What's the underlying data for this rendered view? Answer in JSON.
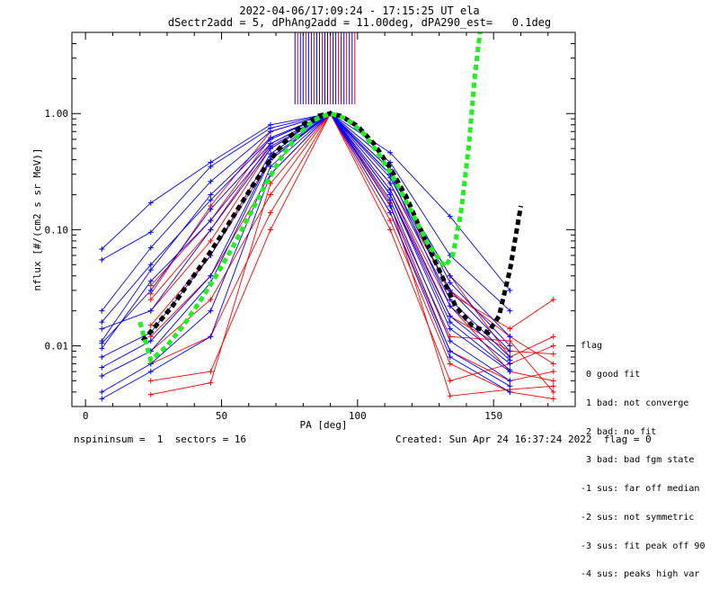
{
  "header": {
    "title_line1": "2022-04-06/17:09:24 - 17:15:25 UT ela",
    "title_line2": "dSectr2add = 5, dPhAng2add = 11.00deg, dPA290_est=   0.1deg"
  },
  "footer": {
    "left": "nspininsum =  1  sectors = 16",
    "right": "Created: Sun Apr 24 16:37:24 2022  flag = 0"
  },
  "legend": {
    "title": "flag",
    "items": [
      " 0 good fit",
      " 1 bad: not converge",
      " 2 bad: no fit",
      " 3 bad: bad fgm state",
      "-1 sus: far off median",
      "-2 sus: not symmetric",
      "-3 sus: fit peak off 90",
      "-4 sus: peaks high var"
    ]
  },
  "chart_data": {
    "type": "line",
    "xlabel": "PA [deg]",
    "ylabel": "nflux [#/(cm2 s sr MeV)]",
    "xlim": [
      -5,
      180
    ],
    "ylim": [
      0.003,
      5.0
    ],
    "yscale": "log",
    "x_ticks": [
      0,
      50,
      100,
      150
    ],
    "x_tick_labels": [
      "0",
      "50",
      "100",
      "150"
    ],
    "y_ticks": [
      0.01,
      0.1,
      1.0
    ],
    "y_tick_labels": [
      "0.01",
      "0.10",
      "1.00"
    ],
    "colors": {
      "blue": "#0000ff",
      "red": "#ff0000",
      "black": "#000000",
      "green": "#22ee22"
    },
    "blue_series": [
      {
        "x": [
          6,
          24,
          46,
          68,
          90,
          112,
          134,
          156
        ],
        "y": [
          0.055,
          0.095,
          0.35,
          0.75,
          1.0,
          0.38,
          0.06,
          0.02
        ]
      },
      {
        "x": [
          6,
          24,
          46,
          68,
          90,
          112,
          134,
          156
        ],
        "y": [
          0.068,
          0.17,
          0.38,
          0.8,
          1.0,
          0.46,
          0.13,
          0.03
        ]
      },
      {
        "x": [
          6,
          24,
          46,
          68,
          90,
          112,
          134,
          156
        ],
        "y": [
          0.02,
          0.07,
          0.26,
          0.7,
          1.0,
          0.3,
          0.04,
          0.012
        ]
      },
      {
        "x": [
          6,
          24,
          46,
          68,
          90,
          112,
          134,
          156
        ],
        "y": [
          0.011,
          0.045,
          0.2,
          0.62,
          1.0,
          0.28,
          0.03,
          0.009
        ]
      },
      {
        "x": [
          6,
          24,
          46,
          68,
          90,
          112,
          134,
          156
        ],
        "y": [
          0.0105,
          0.03,
          0.15,
          0.55,
          1.0,
          0.25,
          0.025,
          0.008
        ]
      },
      {
        "x": [
          6,
          24,
          46,
          68,
          90,
          112,
          134,
          156
        ],
        "y": [
          0.014,
          0.02,
          0.1,
          0.5,
          1.0,
          0.22,
          0.018,
          0.007
        ]
      },
      {
        "x": [
          6,
          24,
          46,
          68,
          90,
          112,
          134,
          156
        ],
        "y": [
          0.008,
          0.013,
          0.06,
          0.45,
          1.0,
          0.2,
          0.014,
          0.006
        ]
      },
      {
        "x": [
          6,
          24,
          46,
          68,
          90,
          112,
          134,
          156
        ],
        "y": [
          0.0055,
          0.009,
          0.035,
          0.4,
          1.0,
          0.18,
          0.011,
          0.005
        ]
      },
      {
        "x": [
          6,
          24,
          46,
          68,
          90,
          112,
          134,
          156
        ],
        "y": [
          0.004,
          0.007,
          0.02,
          0.35,
          1.0,
          0.16,
          0.009,
          0.0045
        ]
      },
      {
        "x": [
          6,
          24,
          46,
          68,
          90,
          112,
          134,
          156
        ],
        "y": [
          0.0035,
          0.006,
          0.012,
          0.3,
          1.0,
          0.14,
          0.008,
          0.004
        ]
      },
      {
        "x": [
          6,
          24,
          46,
          68,
          90,
          112,
          134,
          156
        ],
        "y": [
          0.016,
          0.05,
          0.18,
          0.6,
          1.0,
          0.33,
          0.035,
          0.01
        ]
      },
      {
        "x": [
          6,
          24,
          46,
          68,
          90,
          112,
          134,
          156
        ],
        "y": [
          0.0065,
          0.011,
          0.04,
          0.42,
          1.0,
          0.2,
          0.016,
          0.0062
        ]
      },
      {
        "x": [
          6,
          24,
          46,
          68,
          90,
          112,
          134,
          156
        ],
        "y": [
          0.0095,
          0.036,
          0.12,
          0.52,
          1.0,
          0.3,
          0.022,
          0.0075
        ]
      }
    ],
    "red_series": [
      {
        "x": [
          24,
          46,
          68,
          90,
          112,
          134,
          156,
          172
        ],
        "y": [
          0.033,
          0.12,
          0.62,
          1.0,
          0.3,
          0.04,
          0.008,
          0.012
        ]
      },
      {
        "x": [
          24,
          46,
          68,
          90,
          112,
          134,
          156,
          172
        ],
        "y": [
          0.025,
          0.1,
          0.55,
          1.0,
          0.25,
          0.03,
          0.012,
          0.007
        ]
      },
      {
        "x": [
          24,
          46,
          68,
          90,
          112,
          134,
          156,
          172
        ],
        "y": [
          0.02,
          0.08,
          0.5,
          1.0,
          0.22,
          0.022,
          0.006,
          0.005
        ]
      },
      {
        "x": [
          24,
          46,
          68,
          90,
          112,
          134,
          156,
          172
        ],
        "y": [
          0.015,
          0.06,
          0.4,
          1.0,
          0.2,
          0.018,
          0.009,
          0.0085
        ]
      },
      {
        "x": [
          24,
          46,
          68,
          90,
          112,
          134,
          156,
          172
        ],
        "y": [
          0.012,
          0.04,
          0.3,
          1.0,
          0.16,
          0.012,
          0.011,
          0.004
        ]
      },
      {
        "x": [
          24,
          46,
          68,
          90,
          112,
          134,
          156,
          172
        ],
        "y": [
          0.009,
          0.025,
          0.2,
          1.0,
          0.14,
          0.009,
          0.005,
          0.006
        ]
      },
      {
        "x": [
          24,
          46,
          68,
          90,
          112,
          134,
          156,
          172
        ],
        "y": [
          0.007,
          0.012,
          0.14,
          1.0,
          0.12,
          0.007,
          0.004,
          0.0035
        ]
      },
      {
        "x": [
          24,
          46,
          68,
          90,
          112,
          134,
          156,
          172
        ],
        "y": [
          0.005,
          0.006,
          0.1,
          1.0,
          0.1,
          0.005,
          0.007,
          0.01
        ]
      },
      {
        "x": [
          24,
          46,
          68,
          90,
          112,
          134,
          156,
          172
        ],
        "y": [
          0.0038,
          0.0048,
          0.25,
          1.0,
          0.17,
          0.0037,
          0.0042,
          0.0045
        ]
      },
      {
        "x": [
          24,
          46,
          68,
          90,
          112,
          134,
          156,
          172
        ],
        "y": [
          0.028,
          0.16,
          0.7,
          1.0,
          0.33,
          0.028,
          0.014,
          0.025
        ]
      }
    ],
    "vertical_bars": {
      "x": [
        77,
        78,
        79,
        80,
        81,
        82,
        83,
        84,
        85,
        86,
        87,
        88,
        89,
        90,
        91,
        92,
        93,
        94,
        95,
        96,
        97,
        98,
        99
      ],
      "y_low": 1.2,
      "y_high": 5.0
    },
    "black_fit": {
      "x": [
        21,
        26,
        32,
        38,
        44,
        50,
        56,
        62,
        68,
        74,
        80,
        86,
        90,
        94,
        100,
        106,
        112,
        118,
        124,
        130,
        136,
        142,
        148,
        152,
        156,
        160
      ],
      "y": [
        0.011,
        0.015,
        0.022,
        0.035,
        0.055,
        0.09,
        0.15,
        0.25,
        0.4,
        0.6,
        0.8,
        0.96,
        1.0,
        0.95,
        0.78,
        0.55,
        0.34,
        0.19,
        0.09,
        0.045,
        0.022,
        0.015,
        0.013,
        0.018,
        0.045,
        0.16
      ]
    },
    "green_fit": {
      "x": [
        20,
        24,
        30,
        36,
        42,
        48,
        54,
        60,
        66,
        72,
        78,
        84,
        90,
        96,
        102,
        108,
        114,
        120,
        126,
        132,
        135,
        138,
        141,
        143,
        145
      ],
      "y": [
        0.016,
        0.0075,
        0.01,
        0.015,
        0.024,
        0.04,
        0.07,
        0.13,
        0.24,
        0.42,
        0.65,
        0.88,
        1.0,
        0.9,
        0.68,
        0.44,
        0.26,
        0.14,
        0.075,
        0.048,
        0.06,
        0.14,
        0.55,
        2.0,
        5.0
      ]
    }
  }
}
